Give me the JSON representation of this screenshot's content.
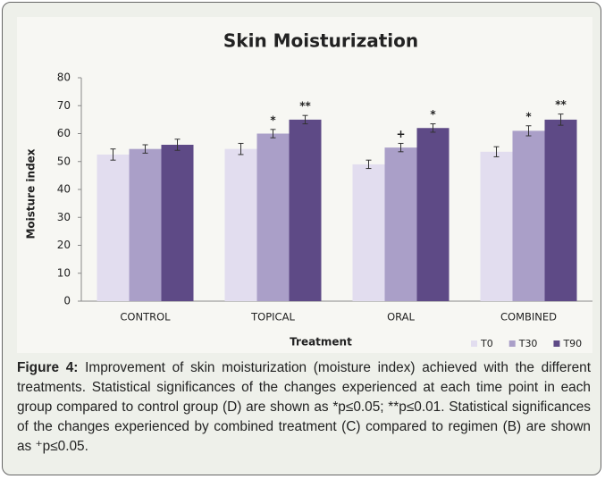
{
  "chart_data": {
    "type": "bar",
    "title": "Skin Moisturization",
    "y_label": "Moisture index",
    "x_label": "Treatment",
    "categories": [
      "CONTROL",
      "TOPICAL",
      "ORAL",
      "COMBINED"
    ],
    "series": [
      {
        "name": "T0",
        "color": "#e2ddef",
        "values": [
          52.5,
          54.5,
          49,
          53.5
        ],
        "errors": [
          2,
          2,
          1.5,
          1.8
        ]
      },
      {
        "name": "T30",
        "color": "#aa9fc8",
        "values": [
          54.5,
          60,
          55,
          61
        ],
        "errors": [
          1.5,
          1.5,
          1.5,
          1.8
        ]
      },
      {
        "name": "T90",
        "color": "#5e4a86",
        "values": [
          56,
          65,
          62,
          65
        ],
        "errors": [
          2,
          1.5,
          1.5,
          2
        ]
      }
    ],
    "annotations": [
      {
        "text": "*",
        "series": "T30",
        "category": "TOPICAL"
      },
      {
        "text": "**",
        "series": "T90",
        "category": "TOPICAL"
      },
      {
        "text": "+",
        "series": "T30",
        "category": "ORAL"
      },
      {
        "text": "*",
        "series": "T90",
        "category": "ORAL"
      },
      {
        "text": "*",
        "series": "T30",
        "category": "COMBINED"
      },
      {
        "text": "**",
        "series": "T90",
        "category": "COMBINED"
      }
    ],
    "ylim": [
      0,
      80
    ],
    "yticks": [
      0,
      10,
      20,
      30,
      40,
      50,
      60,
      70,
      80
    ],
    "grid": false,
    "legend": "bottom-right"
  },
  "caption": {
    "label": "Figure 4:",
    "text": "Improvement of skin moisturization (moisture index) achieved with the different treatments. Statistical significances of the changes experienced at each time point in each group compared to control group (D) are shown as *p≤0.05; **p≤0.01. Statistical significances of the changes experienced by combined treatment (C) compared to regimen (B) are shown as ⁺p≤0.05."
  }
}
